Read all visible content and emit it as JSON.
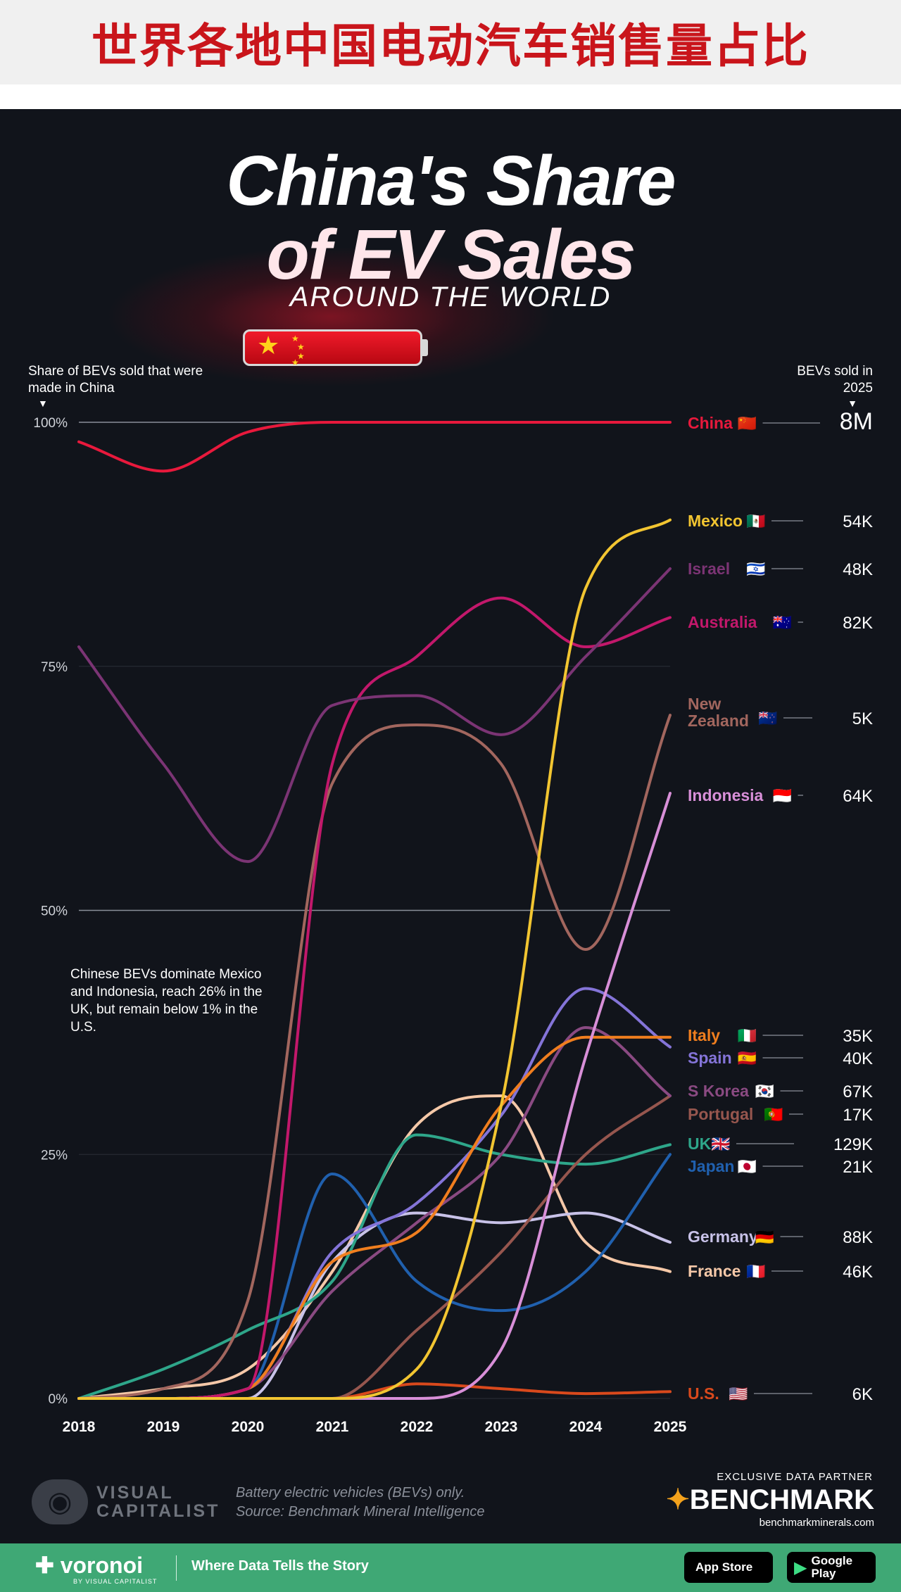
{
  "banner": {
    "title": "世界各地中国电动汽车销售量占比"
  },
  "header": {
    "title_line1": "China's Share",
    "title_line2": "of EV Sales",
    "title_line3": "AROUND THE WORLD"
  },
  "axis_labels": {
    "left": "Share of BEVs sold that were made in China",
    "right": "BEVs sold in 2025"
  },
  "annotation": "Chinese BEVs dominate Mexico and Indonesia, reach 26% in the UK, but remain below 1% in the U.S.",
  "footer": {
    "brand": "VISUAL CAPITALIST",
    "source_line1": "Battery electric vehicles (BEVs) only.",
    "source_line2": "Source: Benchmark Mineral Intelligence",
    "partner_label": "EXCLUSIVE DATA PARTNER",
    "partner_name": "BENCHMARK",
    "partner_url": "benchmarkminerals.com"
  },
  "bottom_bar": {
    "brand": "voronoi",
    "brand_sub": "BY VISUAL CAPITALIST",
    "tagline": "Where Data Tells the Story",
    "app_store": "App Store",
    "google_play": "Google Play"
  },
  "chart_data": {
    "type": "line",
    "title": "China's Share of EV Sales Around the World",
    "ylabel": "Share of BEVs sold that were made in China",
    "xlabel": "",
    "x": [
      2018,
      2019,
      2020,
      2021,
      2022,
      2023,
      2024,
      2025
    ],
    "x_ticks": [
      "2018",
      "2019",
      "2020",
      "2021",
      "2022",
      "2023",
      "2024",
      "2025"
    ],
    "ylim": [
      0,
      100
    ],
    "y_ticks": [
      0,
      25,
      50,
      75,
      100
    ],
    "y_tick_labels": [
      "0%",
      "25%",
      "50%",
      "75%",
      "100%"
    ],
    "series": [
      {
        "name": "China",
        "label": "China",
        "flag": "🇨🇳",
        "sold_2025": "8M",
        "color": "#e8193c",
        "values": [
          98,
          95,
          99,
          100,
          100,
          100,
          100,
          100
        ]
      },
      {
        "name": "Mexico",
        "label": "Mexico",
        "flag": "🇲🇽",
        "sold_2025": "54K",
        "color": "#f2c531",
        "values": [
          0,
          0,
          0,
          0,
          3,
          30,
          83,
          90
        ]
      },
      {
        "name": "Israel",
        "label": "Israel",
        "flag": "🇮🇱",
        "sold_2025": "48K",
        "color": "#7b3474",
        "values": [
          77,
          65,
          55,
          71,
          72,
          68,
          76,
          85
        ]
      },
      {
        "name": "Australia",
        "label": "Australia",
        "flag": "🇦🇺",
        "sold_2025": "82K",
        "color": "#c2186b",
        "values": [
          0,
          0,
          1,
          65,
          76,
          82,
          77,
          80
        ]
      },
      {
        "name": "New Zealand",
        "label": "New Zealand",
        "flag": "🇳🇿",
        "sold_2025": "5K",
        "color": "#a2665e",
        "values": [
          0,
          1,
          10,
          63,
          69,
          65,
          46,
          70
        ]
      },
      {
        "name": "Indonesia",
        "label": "Indonesia",
        "flag": "🇮🇩",
        "sold_2025": "64K",
        "color": "#d88fd8",
        "values": [
          0,
          0,
          0,
          0,
          0,
          5,
          35,
          62
        ]
      },
      {
        "name": "Italy",
        "label": "Italy",
        "flag": "🇮🇹",
        "sold_2025": "35K",
        "color": "#f07e1e",
        "values": [
          0,
          0,
          1,
          14,
          17,
          30,
          37,
          37
        ]
      },
      {
        "name": "Spain",
        "label": "Spain",
        "flag": "🇪🇸",
        "sold_2025": "40K",
        "color": "#8474d8",
        "values": [
          0,
          0,
          1,
          15,
          20,
          29,
          42,
          36
        ]
      },
      {
        "name": "S Korea",
        "label": "S Korea",
        "flag": "🇰🇷",
        "sold_2025": "67K",
        "color": "#8a4a82",
        "values": [
          0,
          0,
          1,
          11,
          18,
          25,
          38,
          31
        ]
      },
      {
        "name": "Portugal",
        "label": "Portugal",
        "flag": "🇵🇹",
        "sold_2025": "17K",
        "color": "#96564e",
        "values": [
          0,
          0,
          0,
          0,
          7,
          15,
          25,
          31
        ]
      },
      {
        "name": "UK",
        "label": "UK",
        "flag": "🇬🇧",
        "sold_2025": "129K",
        "color": "#2ea68a",
        "values": [
          0,
          3,
          7,
          12,
          27,
          25,
          24,
          26
        ]
      },
      {
        "name": "Japan",
        "label": "Japan",
        "flag": "🇯🇵",
        "sold_2025": "21K",
        "color": "#2060ae",
        "values": [
          0,
          0,
          1,
          23,
          12,
          9,
          13,
          25
        ]
      },
      {
        "name": "Germany",
        "label": "Germany",
        "flag": "🇩🇪",
        "sold_2025": "88K",
        "color": "#c8c2e8",
        "values": [
          0,
          0,
          0,
          14,
          19,
          18,
          19,
          16
        ]
      },
      {
        "name": "France",
        "label": "France",
        "flag": "🇫🇷",
        "sold_2025": "46K",
        "color": "#f5c8a8",
        "values": [
          0,
          1,
          3,
          13,
          28,
          31,
          16,
          13
        ]
      },
      {
        "name": "U.S.",
        "label": "U.S.",
        "flag": "🇺🇸",
        "sold_2025": "6K",
        "color": "#d9491c",
        "values": [
          0,
          0,
          0,
          0,
          1.5,
          1,
          0.5,
          0.7
        ]
      }
    ]
  }
}
